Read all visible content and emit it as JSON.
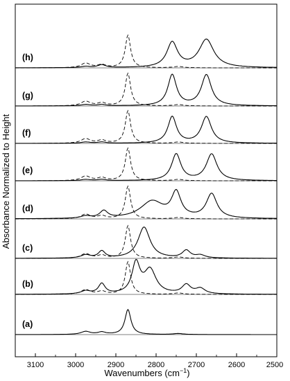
{
  "chart_data": {
    "type": "line",
    "title": "",
    "xlabel": "Wavenumbers (cm",
    "xlabel_sup": "−1",
    "xlabel_close": ")",
    "ylabel": "Absorbance Normalized to Height",
    "xlim": [
      3150,
      2500
    ],
    "x_reversed": true,
    "x_ticks": [
      3100,
      3000,
      2900,
      2800,
      2700,
      2600,
      2500
    ],
    "grid": false,
    "legend": "none",
    "y_ticks_labeled": false,
    "line_styles": {
      "solid": "spectrum",
      "dashed": "reference spectrum (repeated in panels b–h)"
    },
    "panels": [
      {
        "label": "(a)",
        "solid": [
          [
            2975,
            0.12
          ],
          [
            2935,
            0.09
          ],
          [
            2870,
            1.0
          ],
          [
            2745,
            0.04
          ]
        ]
      },
      {
        "label": "(b)",
        "solid": [
          [
            2975,
            0.1
          ],
          [
            2935,
            0.34
          ],
          [
            2850,
            1.0
          ],
          [
            2815,
            0.8
          ],
          [
            2725,
            0.3
          ],
          [
            2690,
            0.18
          ]
        ]
      },
      {
        "label": "(c)",
        "solid": [
          [
            2975,
            0.1
          ],
          [
            2935,
            0.22
          ],
          [
            2830,
            1.0
          ],
          [
            2725,
            0.24
          ],
          [
            2690,
            0.09
          ]
        ]
      },
      {
        "label": "(d)",
        "solid": [
          [
            2975,
            0.07
          ],
          [
            2930,
            0.23
          ],
          [
            2810,
            0.55
          ],
          [
            2750,
            0.78
          ],
          [
            2662,
            0.78
          ]
        ]
      },
      {
        "label": "(e)",
        "solid": [
          [
            2975,
            0.04
          ],
          [
            2935,
            0.04
          ],
          [
            2750,
            0.85
          ],
          [
            2662,
            0.85
          ]
        ]
      },
      {
        "label": "(f)",
        "solid": [
          [
            2975,
            0.04
          ],
          [
            2935,
            0.04
          ],
          [
            2760,
            0.85
          ],
          [
            2675,
            0.85
          ]
        ]
      },
      {
        "label": "(g)",
        "solid": [
          [
            2975,
            0.04
          ],
          [
            2935,
            0.04
          ],
          [
            2760,
            0.93
          ],
          [
            2675,
            0.93
          ]
        ]
      },
      {
        "label": "(h)",
        "solid": [
          [
            2975,
            0.04
          ],
          [
            2935,
            0.09
          ],
          [
            2760,
            0.8
          ],
          [
            2675,
            0.9
          ]
        ]
      }
    ],
    "reference_dashed": [
      [
        2975,
        0.14
      ],
      [
        2935,
        0.09
      ],
      [
        2870,
        1.0
      ],
      [
        2745,
        0.04
      ]
    ]
  }
}
